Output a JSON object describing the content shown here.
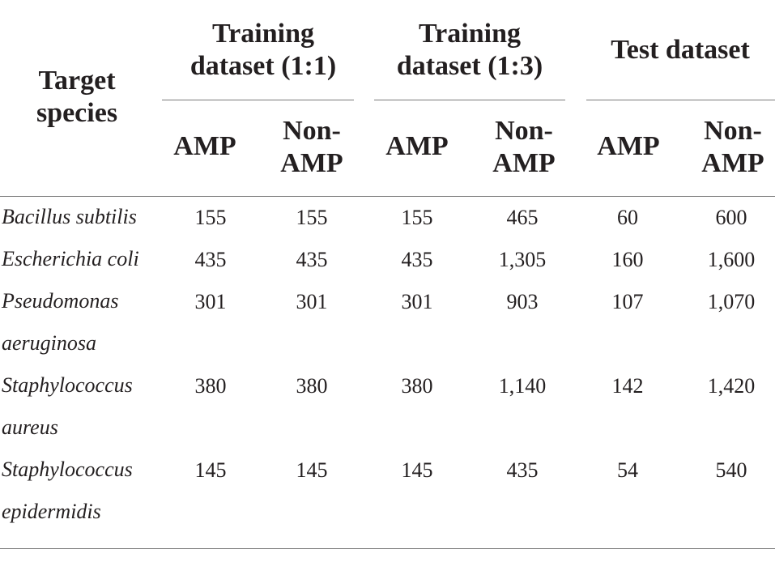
{
  "header": {
    "target_species": [
      "Target",
      "species"
    ],
    "groups": [
      {
        "label": [
          "Training",
          "dataset (1:1)"
        ]
      },
      {
        "label": [
          "Training",
          "dataset (1:3)"
        ]
      },
      {
        "label": [
          "Test dataset"
        ]
      }
    ],
    "amp": "AMP",
    "non_amp": [
      "Non-",
      "AMP"
    ]
  },
  "rows": [
    {
      "species": [
        "Bacillus subtilis"
      ],
      "values": [
        "155",
        "155",
        "155",
        "465",
        "60",
        "600"
      ]
    },
    {
      "species": [
        "Escherichia coli"
      ],
      "values": [
        "435",
        "435",
        "435",
        "1,305",
        "160",
        "1,600"
      ]
    },
    {
      "species": [
        "Pseudomonas",
        "aeruginosa"
      ],
      "values": [
        "301",
        "301",
        "301",
        "903",
        "107",
        "1,070"
      ]
    },
    {
      "species": [
        "Staphylococcus",
        "aureus"
      ],
      "values": [
        "380",
        "380",
        "380",
        "1,140",
        "142",
        "1,420"
      ]
    },
    {
      "species": [
        "Staphylococcus",
        "epidermidis"
      ],
      "values": [
        "145",
        "145",
        "145",
        "435",
        "54",
        "540"
      ]
    }
  ]
}
